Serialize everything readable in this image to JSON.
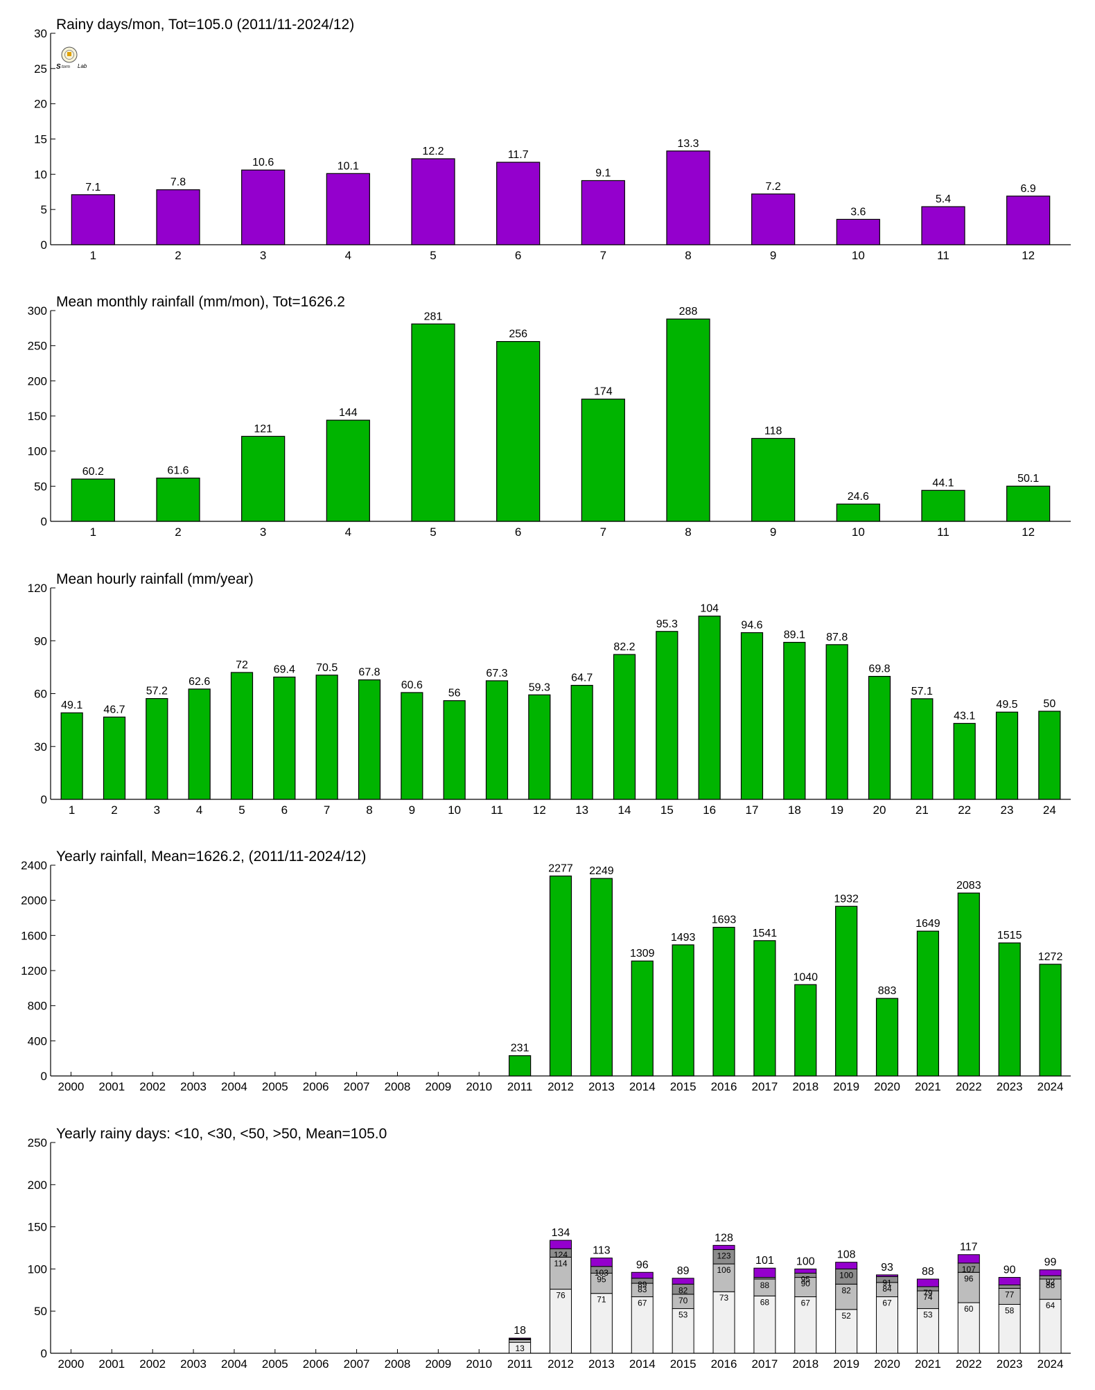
{
  "colors": {
    "purple": "#9400cd",
    "green": "#00b400",
    "dark_gray": "#8c8c8c",
    "mid_gray": "#bdbdbd",
    "light_gray": "#f0f0f0",
    "axis": "#000000"
  },
  "chart_data": [
    {
      "type": "bar",
      "title": "Rainy days/mon, Tot=105.0 (2011/11-2024/12)",
      "categories": [
        "1",
        "2",
        "3",
        "4",
        "5",
        "6",
        "7",
        "8",
        "9",
        "10",
        "11",
        "12"
      ],
      "values": [
        7.1,
        7.8,
        10.6,
        10.1,
        12.2,
        11.7,
        9.1,
        13.3,
        7.2,
        3.6,
        5.4,
        6.9
      ],
      "value_labels": [
        "7.1",
        "7.8",
        "10.6",
        "10.1",
        "12.2",
        "11.7",
        "9.1",
        "13.3",
        "7.2",
        "3.6",
        "5.4",
        "6.9"
      ],
      "ylim": [
        0,
        30
      ],
      "yticks": [
        0,
        5,
        10,
        15,
        20,
        25,
        30
      ],
      "color": "#9400cd",
      "grid": false
    },
    {
      "type": "bar",
      "title": "Mean monthly rainfall (mm/mon), Tot=1626.2",
      "categories": [
        "1",
        "2",
        "3",
        "4",
        "5",
        "6",
        "7",
        "8",
        "9",
        "10",
        "11",
        "12"
      ],
      "values": [
        60.2,
        61.6,
        121,
        144,
        281,
        256,
        174,
        288,
        118,
        24.6,
        44.1,
        50.1
      ],
      "value_labels": [
        "60.2",
        "61.6",
        "121",
        "144",
        "281",
        "256",
        "174",
        "288",
        "118",
        "24.6",
        "44.1",
        "50.1"
      ],
      "ylim": [
        0,
        300
      ],
      "yticks": [
        0,
        50,
        100,
        150,
        200,
        250,
        300
      ],
      "color": "#00b400",
      "grid": false
    },
    {
      "type": "bar",
      "title": "Mean hourly rainfall (mm/year)",
      "categories": [
        "1",
        "2",
        "3",
        "4",
        "5",
        "6",
        "7",
        "8",
        "9",
        "10",
        "11",
        "12",
        "13",
        "14",
        "15",
        "16",
        "17",
        "18",
        "19",
        "20",
        "21",
        "22",
        "23",
        "24"
      ],
      "values": [
        49.1,
        46.7,
        57.2,
        62.6,
        72,
        69.4,
        70.5,
        67.8,
        60.6,
        56,
        67.3,
        59.3,
        64.7,
        82.2,
        95.3,
        104,
        94.6,
        89.1,
        87.8,
        69.8,
        57.1,
        43.1,
        49.5,
        50
      ],
      "value_labels": [
        "49.1",
        "46.7",
        "57.2",
        "62.6",
        "72",
        "69.4",
        "70.5",
        "67.8",
        "60.6",
        "56",
        "67.3",
        "59.3",
        "64.7",
        "82.2",
        "95.3",
        "104",
        "94.6",
        "89.1",
        "87.8",
        "69.8",
        "57.1",
        "43.1",
        "49.5",
        "50"
      ],
      "ylim": [
        0,
        120
      ],
      "yticks": [
        0,
        30,
        60,
        90,
        120
      ],
      "color": "#00b400",
      "grid": false
    },
    {
      "type": "bar",
      "title": "Yearly rainfall, Mean=1626.2, (2011/11-2024/12)",
      "categories": [
        "2000",
        "2001",
        "2002",
        "2003",
        "2004",
        "2005",
        "2006",
        "2007",
        "2008",
        "2009",
        "2010",
        "2011",
        "2012",
        "2013",
        "2014",
        "2015",
        "2016",
        "2017",
        "2018",
        "2019",
        "2020",
        "2021",
        "2022",
        "2023",
        "2024"
      ],
      "values": [
        null,
        null,
        null,
        null,
        null,
        null,
        null,
        null,
        null,
        null,
        null,
        231,
        2277,
        2249,
        1309,
        1493,
        1693,
        1541,
        1040,
        1932,
        883,
        1649,
        2083,
        1515,
        1272
      ],
      "value_labels": [
        "",
        "",
        "",
        "",
        "",
        "",
        "",
        "",
        "",
        "",
        "",
        "231",
        "2277",
        "2249",
        "1309",
        "1493",
        "1693",
        "1541",
        "1040",
        "1932",
        "883",
        "1649",
        "2083",
        "1515",
        "1272"
      ],
      "ylim": [
        0,
        2400
      ],
      "yticks": [
        0,
        400,
        800,
        1200,
        1600,
        2000,
        2400
      ],
      "color": "#00b400",
      "grid": false
    },
    {
      "type": "bar",
      "stacked": true,
      "title": "Yearly rainy days: <10, <30, <50, >50, Mean=105.0",
      "categories": [
        "2000",
        "2001",
        "2002",
        "2003",
        "2004",
        "2005",
        "2006",
        "2007",
        "2008",
        "2009",
        "2010",
        "2011",
        "2012",
        "2013",
        "2014",
        "2015",
        "2016",
        "2017",
        "2018",
        "2019",
        "2020",
        "2021",
        "2022",
        "2023",
        "2024"
      ],
      "cumulative": [
        null,
        null,
        null,
        null,
        null,
        null,
        null,
        null,
        null,
        null,
        null,
        [
          13,
          16,
          17,
          18
        ],
        [
          76,
          114,
          124,
          134
        ],
        [
          71,
          95,
          103,
          113
        ],
        [
          67,
          83,
          89,
          96
        ],
        [
          53,
          70,
          82,
          89
        ],
        [
          73,
          106,
          123,
          128
        ],
        [
          68,
          88,
          90,
          101
        ],
        [
          67,
          90,
          95,
          100
        ],
        [
          52,
          82,
          100,
          108
        ],
        [
          67,
          84,
          91,
          93
        ],
        [
          53,
          74,
          79,
          88
        ],
        [
          60,
          96,
          107,
          117
        ],
        [
          58,
          77,
          81,
          90
        ],
        [
          64,
          88,
          92,
          99
        ]
      ],
      "inner_labels": [
        null,
        null,
        null,
        null,
        null,
        null,
        null,
        null,
        null,
        null,
        null,
        [
          "13",
          "",
          ""
        ],
        [
          "76",
          "114",
          "124"
        ],
        [
          "71",
          "95",
          "103"
        ],
        [
          "67",
          "83",
          "89"
        ],
        [
          "53",
          "70",
          "82"
        ],
        [
          "73",
          "106",
          "123"
        ],
        [
          "68",
          "88",
          ""
        ],
        [
          "67",
          "90",
          "95"
        ],
        [
          "52",
          "82",
          "100"
        ],
        [
          "67",
          "84",
          "91"
        ],
        [
          "53",
          "74",
          "79"
        ],
        [
          "60",
          "96",
          "107"
        ],
        [
          "58",
          "77",
          ""
        ],
        [
          "64",
          "88",
          "92"
        ]
      ],
      "total_labels": [
        "",
        "",
        "",
        "",
        "",
        "",
        "",
        "",
        "",
        "",
        "",
        "18",
        "134",
        "113",
        "96",
        "89",
        "128",
        "101",
        "100",
        "108",
        "93",
        "88",
        "117",
        "90",
        "99"
      ],
      "layer_colors": [
        "#f0f0f0",
        "#bdbdbd",
        "#8c8c8c",
        "#9400cd"
      ],
      "ylim": [
        0,
        250
      ],
      "yticks": [
        0,
        50,
        100,
        150,
        200,
        250
      ],
      "grid": false
    }
  ]
}
